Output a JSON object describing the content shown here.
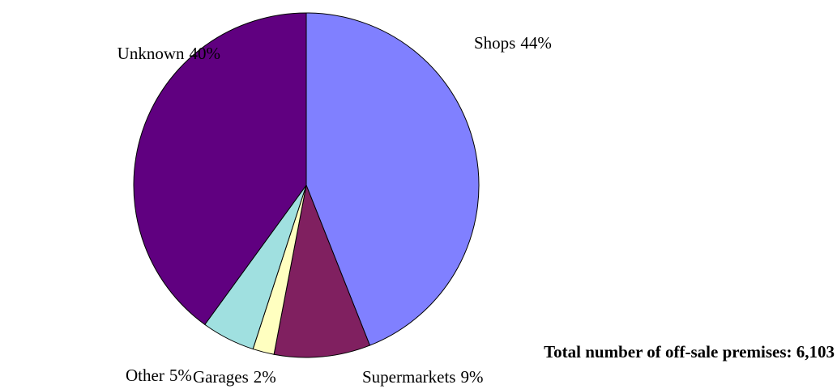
{
  "chart_data": {
    "type": "pie",
    "categories": [
      "Shops",
      "Supermarkets",
      "Garages",
      "Other",
      "Unknown"
    ],
    "values": [
      44,
      9,
      2,
      5,
      40
    ],
    "value_labels": [
      "44%",
      "9%",
      "2%",
      "5%",
      "40%"
    ],
    "colors": [
      "#8080ff",
      "#802060",
      "#ffffc0",
      "#a0e0e0",
      "#600080"
    ],
    "annotation": "Total number of off-sale premises: 6,103"
  }
}
